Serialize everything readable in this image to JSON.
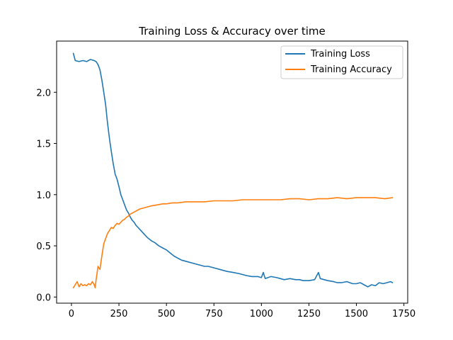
{
  "chart_data": {
    "type": "line",
    "title": "Training Loss & Accuracy over time",
    "xlabel": "",
    "ylabel": "",
    "xlim": [
      -78,
      1770
    ],
    "ylim": [
      -0.06,
      2.5
    ],
    "xticks": [
      0,
      250,
      500,
      750,
      1000,
      1250,
      1500,
      1750
    ],
    "yticks": [
      0.0,
      0.5,
      1.0,
      1.5,
      2.0
    ],
    "grid": false,
    "legend_position": "top-right",
    "series": [
      {
        "name": "Training Loss",
        "color": "#1f77b4",
        "x": [
          10,
          20,
          40,
          60,
          80,
          100,
          120,
          130,
          140,
          150,
          160,
          170,
          180,
          190,
          200,
          210,
          220,
          230,
          240,
          250,
          260,
          270,
          280,
          290,
          300,
          310,
          320,
          330,
          340,
          350,
          360,
          380,
          400,
          420,
          440,
          460,
          480,
          500,
          520,
          540,
          560,
          580,
          600,
          620,
          640,
          660,
          680,
          700,
          720,
          740,
          760,
          780,
          800,
          820,
          850,
          880,
          900,
          920,
          950,
          980,
          1000,
          1010,
          1020,
          1050,
          1080,
          1100,
          1120,
          1150,
          1180,
          1200,
          1220,
          1250,
          1280,
          1300,
          1310,
          1330,
          1350,
          1380,
          1400,
          1420,
          1450,
          1480,
          1500,
          1520,
          1540,
          1560,
          1580,
          1600,
          1620,
          1640,
          1660,
          1680,
          1690
        ],
        "values": [
          2.38,
          2.31,
          2.3,
          2.31,
          2.3,
          2.32,
          2.31,
          2.3,
          2.27,
          2.22,
          2.12,
          2.0,
          1.88,
          1.7,
          1.55,
          1.42,
          1.3,
          1.2,
          1.15,
          1.08,
          1.0,
          0.95,
          0.9,
          0.85,
          0.82,
          0.78,
          0.75,
          0.73,
          0.7,
          0.68,
          0.66,
          0.62,
          0.58,
          0.55,
          0.53,
          0.5,
          0.48,
          0.46,
          0.43,
          0.4,
          0.38,
          0.36,
          0.35,
          0.34,
          0.33,
          0.32,
          0.31,
          0.3,
          0.3,
          0.29,
          0.28,
          0.27,
          0.26,
          0.25,
          0.24,
          0.23,
          0.22,
          0.21,
          0.2,
          0.2,
          0.19,
          0.24,
          0.18,
          0.2,
          0.19,
          0.18,
          0.17,
          0.18,
          0.17,
          0.17,
          0.16,
          0.16,
          0.17,
          0.24,
          0.18,
          0.17,
          0.16,
          0.15,
          0.14,
          0.14,
          0.15,
          0.13,
          0.13,
          0.14,
          0.12,
          0.1,
          0.12,
          0.11,
          0.14,
          0.13,
          0.14,
          0.15,
          0.14
        ]
      },
      {
        "name": "Training Accuracy",
        "color": "#ff7f0e",
        "x": [
          10,
          20,
          30,
          40,
          50,
          60,
          70,
          80,
          90,
          100,
          110,
          120,
          125,
          130,
          140,
          150,
          160,
          170,
          180,
          190,
          200,
          210,
          220,
          230,
          240,
          250,
          260,
          270,
          280,
          290,
          300,
          310,
          320,
          330,
          340,
          350,
          360,
          380,
          400,
          420,
          450,
          480,
          500,
          530,
          560,
          600,
          650,
          700,
          750,
          800,
          850,
          900,
          950,
          1000,
          1050,
          1100,
          1150,
          1200,
          1250,
          1300,
          1350,
          1400,
          1450,
          1500,
          1550,
          1600,
          1650,
          1690
        ],
        "values": [
          0.09,
          0.12,
          0.15,
          0.1,
          0.13,
          0.11,
          0.12,
          0.11,
          0.13,
          0.12,
          0.15,
          0.12,
          0.09,
          0.17,
          0.3,
          0.27,
          0.4,
          0.52,
          0.57,
          0.62,
          0.65,
          0.68,
          0.67,
          0.7,
          0.72,
          0.71,
          0.73,
          0.75,
          0.76,
          0.78,
          0.79,
          0.81,
          0.82,
          0.83,
          0.84,
          0.85,
          0.86,
          0.87,
          0.88,
          0.89,
          0.9,
          0.91,
          0.91,
          0.92,
          0.92,
          0.93,
          0.93,
          0.93,
          0.94,
          0.94,
          0.94,
          0.95,
          0.95,
          0.95,
          0.95,
          0.95,
          0.96,
          0.96,
          0.95,
          0.96,
          0.96,
          0.97,
          0.96,
          0.97,
          0.97,
          0.97,
          0.96,
          0.97
        ]
      }
    ]
  }
}
